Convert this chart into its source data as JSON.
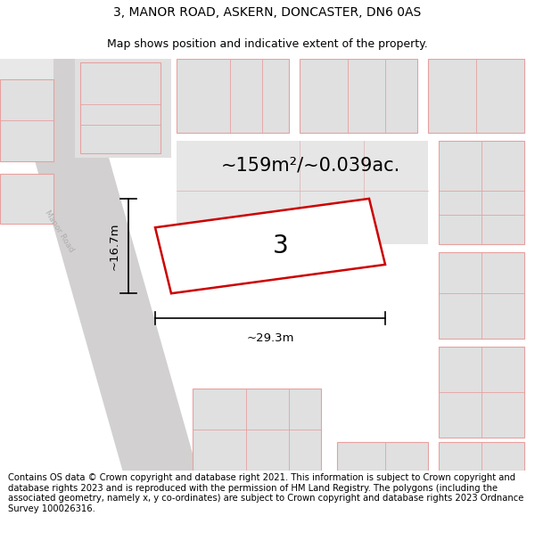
{
  "title_line1": "3, MANOR ROAD, ASKERN, DONCASTER, DN6 0AS",
  "title_line2": "Map shows position and indicative extent of the property.",
  "area_label": "~159m²/~0.039ac.",
  "plot_number": "3",
  "dim_width_label": "~29.3m",
  "dim_height_label": "~16.7m",
  "footer_text": "Contains OS data © Crown copyright and database right 2021. This information is subject to Crown copyright and database rights 2023 and is reproduced with the permission of HM Land Registry. The polygons (including the associated geometry, namely x, y co-ordinates) are subject to Crown copyright and database rights 2023 Ordnance Survey 100026316.",
  "bg_color": "#f5f5f5",
  "road_fill": "#d0d0d0",
  "road_edge": "#bbbbbb",
  "plot_outline_color": "#cc0000",
  "plot_fill_color": "#ffffff",
  "building_fill": "#e2e2e2",
  "building_stroke": "#e8a0a0",
  "title_fontsize": 10,
  "subtitle_fontsize": 9,
  "area_label_fontsize": 15,
  "plot_label_fontsize": 20,
  "footer_fontsize": 7.2,
  "road_label_color": "#bbbbbb",
  "dim_fontsize": 9.5
}
